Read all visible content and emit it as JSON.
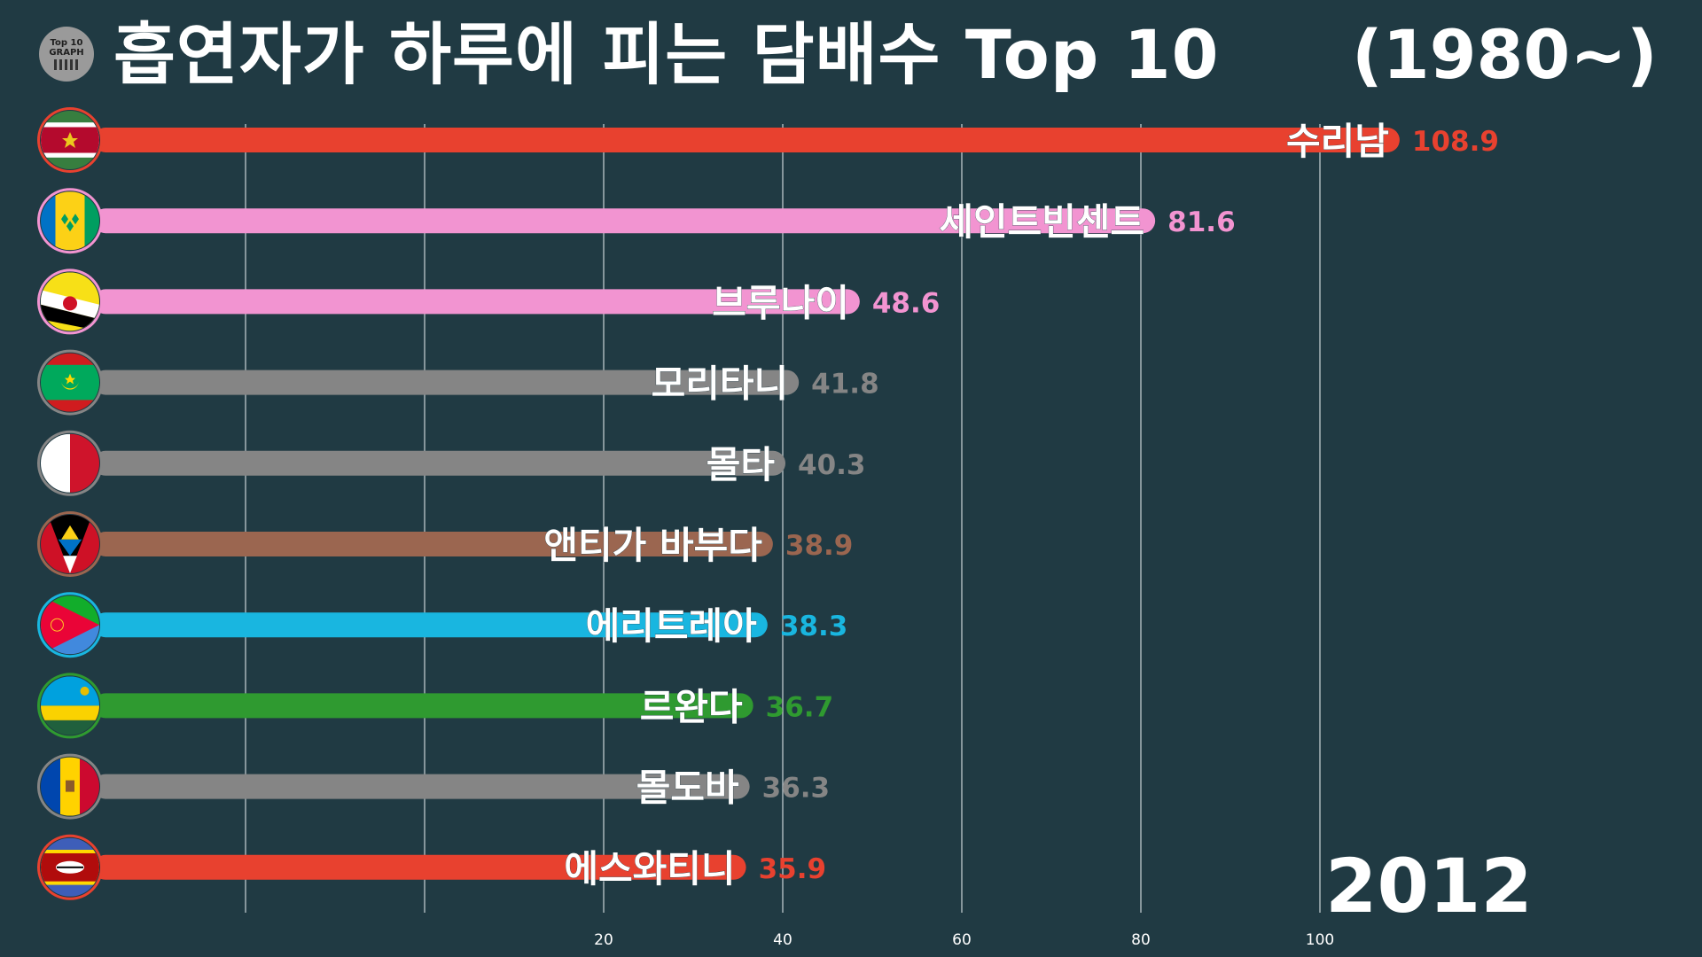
{
  "logo": {
    "line1": "Top 10",
    "line2": "GRAPH"
  },
  "title": "흡연자가 하루에 피는 담배수 Top 10",
  "period": "(1980~)",
  "year": "2012",
  "chart_data": {
    "type": "bar",
    "orientation": "horizontal",
    "title": "흡연자가 하루에 피는 담배수 Top 10",
    "categories": [
      "수리남",
      "세인트빈센트",
      "브루나이",
      "모리타니",
      "몰타",
      "앤티가 바부다",
      "에리트레아",
      "르완다",
      "몰도바",
      "에스와티니"
    ],
    "values": [
      108.9,
      81.6,
      48.6,
      41.8,
      40.3,
      38.9,
      38.3,
      36.7,
      36.3,
      35.9
    ],
    "value_labels": [
      "108.9",
      "81.6",
      "48.6",
      "41.8",
      "40.3",
      "38.9",
      "38.3",
      "36.7",
      "36.3",
      "35.9"
    ],
    "colors": [
      "#e8412f",
      "#f294d1",
      "#f294d1",
      "#858585",
      "#858585",
      "#9b6650",
      "#19b6e0",
      "#2f9a30",
      "#858585",
      "#e8412f"
    ],
    "flags": [
      "suriname-flag-icon",
      "saint-vincent-flag-icon",
      "brunei-flag-icon",
      "mauritania-flag-icon",
      "malta-flag-icon",
      "antigua-barbuda-flag-icon",
      "eritrea-flag-icon",
      "rwanda-flag-icon",
      "moldova-flag-icon",
      "eswatini-flag-icon"
    ],
    "xticks": [
      20,
      40,
      60,
      80,
      100
    ],
    "xtick_labels": [
      "20",
      "40",
      "60",
      "80",
      "100"
    ],
    "gridlines_at": [
      -20,
      0,
      20,
      40,
      60,
      80,
      100
    ],
    "xlim": [
      -30,
      119
    ],
    "grid": true,
    "xlabel": "",
    "ylabel": ""
  }
}
